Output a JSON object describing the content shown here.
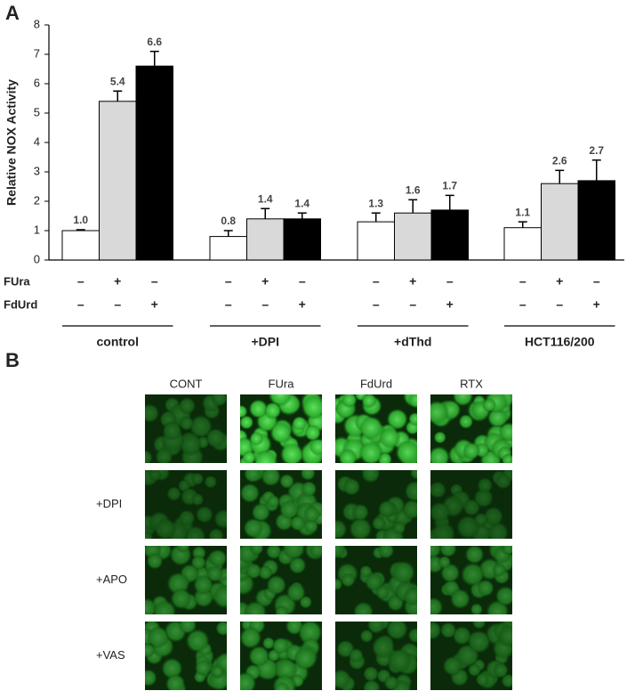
{
  "chart_data": {
    "type": "bar",
    "panel_label": "A",
    "y_label": "Relative NOX Activity",
    "categories": [
      "control",
      "+DPI",
      "+dThd",
      "HCT116/200"
    ],
    "series": [
      {
        "color": "#ffffff",
        "values": [
          1.0,
          0.8,
          1.3,
          1.1
        ],
        "errors": [
          0.03,
          0.2,
          0.3,
          0.2
        ],
        "value_labels": [
          "1.0",
          "0.8",
          "1.3",
          "1.1"
        ]
      },
      {
        "color": "#d9d9d9",
        "values": [
          5.4,
          1.4,
          1.6,
          2.6
        ],
        "errors": [
          0.35,
          0.35,
          0.45,
          0.45
        ],
        "value_labels": [
          "5.4",
          "1.4",
          "1.6",
          "2.6"
        ]
      },
      {
        "color": "#000000",
        "values": [
          6.6,
          1.4,
          1.7,
          2.7
        ],
        "errors": [
          0.5,
          0.2,
          0.5,
          0.7
        ],
        "value_labels": [
          "6.6",
          "1.4",
          "1.7",
          "2.7"
        ]
      }
    ],
    "treatment_rows": [
      {
        "label": "FUra",
        "signs": [
          "–",
          "+",
          "–",
          "–",
          "+",
          "–",
          "–",
          "+",
          "–",
          "–",
          "+",
          "–"
        ]
      },
      {
        "label": "FdUrd",
        "signs": [
          "–",
          "–",
          "+",
          "–",
          "–",
          "+",
          "–",
          "–",
          "+",
          "–",
          "–",
          "+"
        ]
      }
    ],
    "ylim": [
      0,
      8
    ],
    "yticks": [
      0,
      1,
      2,
      3,
      4,
      5,
      6,
      7,
      8
    ]
  },
  "microscopy": {
    "panel_label": "B",
    "columns": [
      "CONT",
      "FUra",
      "FdUrd",
      "RTX"
    ],
    "row_labels": [
      "+DPI",
      "+APO",
      "+VAS"
    ]
  }
}
